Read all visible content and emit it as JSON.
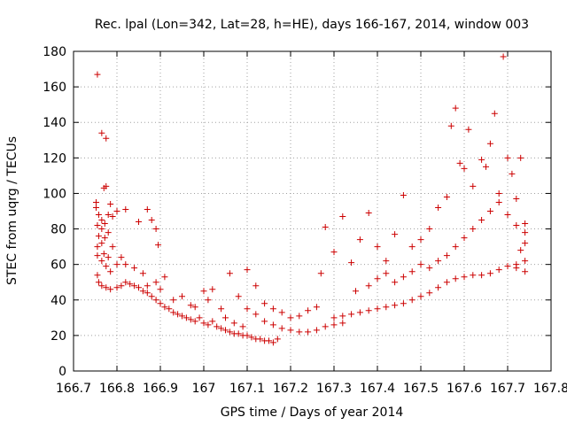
{
  "chart_data": {
    "type": "scatter",
    "title": "Rec. lpal (Lon=342, Lat=28, h=HE), days 166-167, 2014, window 003",
    "xlabel": "GPS time / Days of year 2014",
    "ylabel": "STEC from uqrg / TECUs",
    "xlim": [
      166.7,
      167.8
    ],
    "ylim": [
      0,
      180
    ],
    "xticks": [
      166.7,
      166.8,
      166.9,
      167,
      167.1,
      167.2,
      167.3,
      167.4,
      167.5,
      167.6,
      167.7,
      167.8
    ],
    "xtick_labels": [
      "166.7",
      "166.8",
      "166.9",
      "167",
      "167.1",
      "167.2",
      "167.3",
      "167.4",
      "167.5",
      "167.6",
      "167.7",
      "167.8"
    ],
    "yticks": [
      0,
      20,
      40,
      60,
      80,
      100,
      120,
      140,
      160,
      180
    ],
    "ytick_labels": [
      "0",
      "20",
      "40",
      "60",
      "80",
      "100",
      "120",
      "140",
      "160",
      "180"
    ],
    "grid": true,
    "legend": "none",
    "marker": "plus",
    "color": "#cc0000",
    "points": [
      [
        166.755,
        167
      ],
      [
        166.765,
        134
      ],
      [
        166.775,
        131
      ],
      [
        166.77,
        103
      ],
      [
        166.775,
        104
      ],
      [
        166.785,
        94
      ],
      [
        166.752,
        95
      ],
      [
        166.752,
        92
      ],
      [
        166.758,
        88
      ],
      [
        166.765,
        85
      ],
      [
        166.772,
        83
      ],
      [
        166.78,
        88
      ],
      [
        166.79,
        87
      ],
      [
        166.8,
        90
      ],
      [
        166.82,
        91
      ],
      [
        166.85,
        84
      ],
      [
        166.87,
        91
      ],
      [
        166.88,
        85
      ],
      [
        166.89,
        80
      ],
      [
        166.895,
        71
      ],
      [
        166.755,
        82
      ],
      [
        166.758,
        76
      ],
      [
        166.765,
        80
      ],
      [
        166.772,
        75
      ],
      [
        166.78,
        78
      ],
      [
        166.755,
        70
      ],
      [
        166.765,
        72
      ],
      [
        166.77,
        66
      ],
      [
        166.78,
        64
      ],
      [
        166.79,
        70
      ],
      [
        166.755,
        65
      ],
      [
        166.765,
        62
      ],
      [
        166.775,
        59
      ],
      [
        166.785,
        56
      ],
      [
        166.8,
        60
      ],
      [
        166.81,
        64
      ],
      [
        166.82,
        60
      ],
      [
        166.84,
        58
      ],
      [
        166.86,
        55
      ],
      [
        166.87,
        48
      ],
      [
        166.755,
        54
      ],
      [
        166.758,
        50
      ],
      [
        166.765,
        48
      ],
      [
        166.775,
        47
      ],
      [
        166.785,
        46
      ],
      [
        166.8,
        47
      ],
      [
        166.81,
        48
      ],
      [
        166.82,
        50
      ],
      [
        166.83,
        49
      ],
      [
        166.84,
        48
      ],
      [
        166.85,
        47
      ],
      [
        166.86,
        45
      ],
      [
        166.87,
        44
      ],
      [
        166.88,
        42
      ],
      [
        166.89,
        40
      ],
      [
        166.9,
        38
      ],
      [
        166.91,
        36
      ],
      [
        166.92,
        35
      ],
      [
        166.93,
        33
      ],
      [
        166.94,
        32
      ],
      [
        166.95,
        31
      ],
      [
        166.96,
        30
      ],
      [
        166.97,
        29
      ],
      [
        166.98,
        28
      ],
      [
        166.89,
        50
      ],
      [
        166.9,
        46
      ],
      [
        166.91,
        53
      ],
      [
        166.93,
        40
      ],
      [
        166.95,
        42
      ],
      [
        166.97,
        37
      ],
      [
        166.98,
        36
      ],
      [
        166.99,
        30
      ],
      [
        167.0,
        27
      ],
      [
        167.01,
        26
      ],
      [
        167.02,
        28
      ],
      [
        167.03,
        25
      ],
      [
        167.04,
        24
      ],
      [
        167.05,
        23
      ],
      [
        167.06,
        22
      ],
      [
        167.07,
        21
      ],
      [
        167.08,
        21
      ],
      [
        167.09,
        20
      ],
      [
        167.1,
        20
      ],
      [
        167.11,
        19
      ],
      [
        167.12,
        18
      ],
      [
        167.13,
        18
      ],
      [
        167.14,
        17
      ],
      [
        167.15,
        17
      ],
      [
        167.16,
        16
      ],
      [
        167.17,
        18
      ],
      [
        167.05,
        30
      ],
      [
        167.07,
        27
      ],
      [
        167.09,
        25
      ],
      [
        167.1,
        35
      ],
      [
        167.12,
        32
      ],
      [
        167.14,
        28
      ],
      [
        167.16,
        26
      ],
      [
        167.18,
        24
      ],
      [
        167.2,
        23
      ],
      [
        167.22,
        22
      ],
      [
        167.24,
        22
      ],
      [
        167.26,
        23
      ],
      [
        167.28,
        25
      ],
      [
        167.3,
        26
      ],
      [
        167.32,
        27
      ],
      [
        167.0,
        45
      ],
      [
        167.01,
        40
      ],
      [
        167.02,
        46
      ],
      [
        167.04,
        35
      ],
      [
        167.06,
        55
      ],
      [
        167.08,
        42
      ],
      [
        167.1,
        57
      ],
      [
        167.12,
        48
      ],
      [
        167.14,
        38
      ],
      [
        167.16,
        35
      ],
      [
        167.18,
        33
      ],
      [
        167.2,
        30
      ],
      [
        167.22,
        31
      ],
      [
        167.24,
        34
      ],
      [
        167.26,
        36
      ],
      [
        167.27,
        55
      ],
      [
        167.28,
        81
      ],
      [
        167.3,
        67
      ],
      [
        167.32,
        87
      ],
      [
        167.34,
        61
      ],
      [
        167.36,
        74
      ],
      [
        167.38,
        89
      ],
      [
        167.4,
        70
      ],
      [
        167.42,
        62
      ],
      [
        167.44,
        77
      ],
      [
        167.46,
        99
      ],
      [
        167.48,
        70
      ],
      [
        167.5,
        74
      ],
      [
        167.52,
        80
      ],
      [
        167.54,
        92
      ],
      [
        167.56,
        98
      ],
      [
        167.57,
        138
      ],
      [
        167.58,
        148
      ],
      [
        167.59,
        117
      ],
      [
        167.6,
        114
      ],
      [
        167.61,
        136
      ],
      [
        167.62,
        104
      ],
      [
        167.64,
        119
      ],
      [
        167.65,
        115
      ],
      [
        167.66,
        128
      ],
      [
        167.67,
        145
      ],
      [
        167.68,
        100
      ],
      [
        167.69,
        177
      ],
      [
        167.7,
        120
      ],
      [
        167.71,
        111
      ],
      [
        167.72,
        97
      ],
      [
        167.73,
        120
      ],
      [
        167.74,
        83
      ],
      [
        167.74,
        72
      ],
      [
        167.73,
        68
      ],
      [
        167.3,
        30
      ],
      [
        167.32,
        31
      ],
      [
        167.34,
        32
      ],
      [
        167.36,
        33
      ],
      [
        167.38,
        34
      ],
      [
        167.4,
        35
      ],
      [
        167.42,
        36
      ],
      [
        167.44,
        37
      ],
      [
        167.46,
        38
      ],
      [
        167.48,
        40
      ],
      [
        167.5,
        42
      ],
      [
        167.52,
        44
      ],
      [
        167.54,
        47
      ],
      [
        167.56,
        50
      ],
      [
        167.58,
        52
      ],
      [
        167.6,
        53
      ],
      [
        167.62,
        54
      ],
      [
        167.64,
        54
      ],
      [
        167.66,
        55
      ],
      [
        167.68,
        57
      ],
      [
        167.7,
        59
      ],
      [
        167.72,
        60
      ],
      [
        167.74,
        62
      ],
      [
        167.74,
        56
      ],
      [
        167.72,
        58
      ],
      [
        167.35,
        45
      ],
      [
        167.38,
        48
      ],
      [
        167.4,
        52
      ],
      [
        167.42,
        55
      ],
      [
        167.44,
        50
      ],
      [
        167.46,
        53
      ],
      [
        167.48,
        56
      ],
      [
        167.5,
        60
      ],
      [
        167.52,
        58
      ],
      [
        167.54,
        62
      ],
      [
        167.56,
        65
      ],
      [
        167.58,
        70
      ],
      [
        167.6,
        75
      ],
      [
        167.62,
        80
      ],
      [
        167.64,
        85
      ],
      [
        167.66,
        90
      ],
      [
        167.68,
        95
      ],
      [
        167.7,
        88
      ],
      [
        167.72,
        82
      ],
      [
        167.74,
        78
      ]
    ]
  }
}
